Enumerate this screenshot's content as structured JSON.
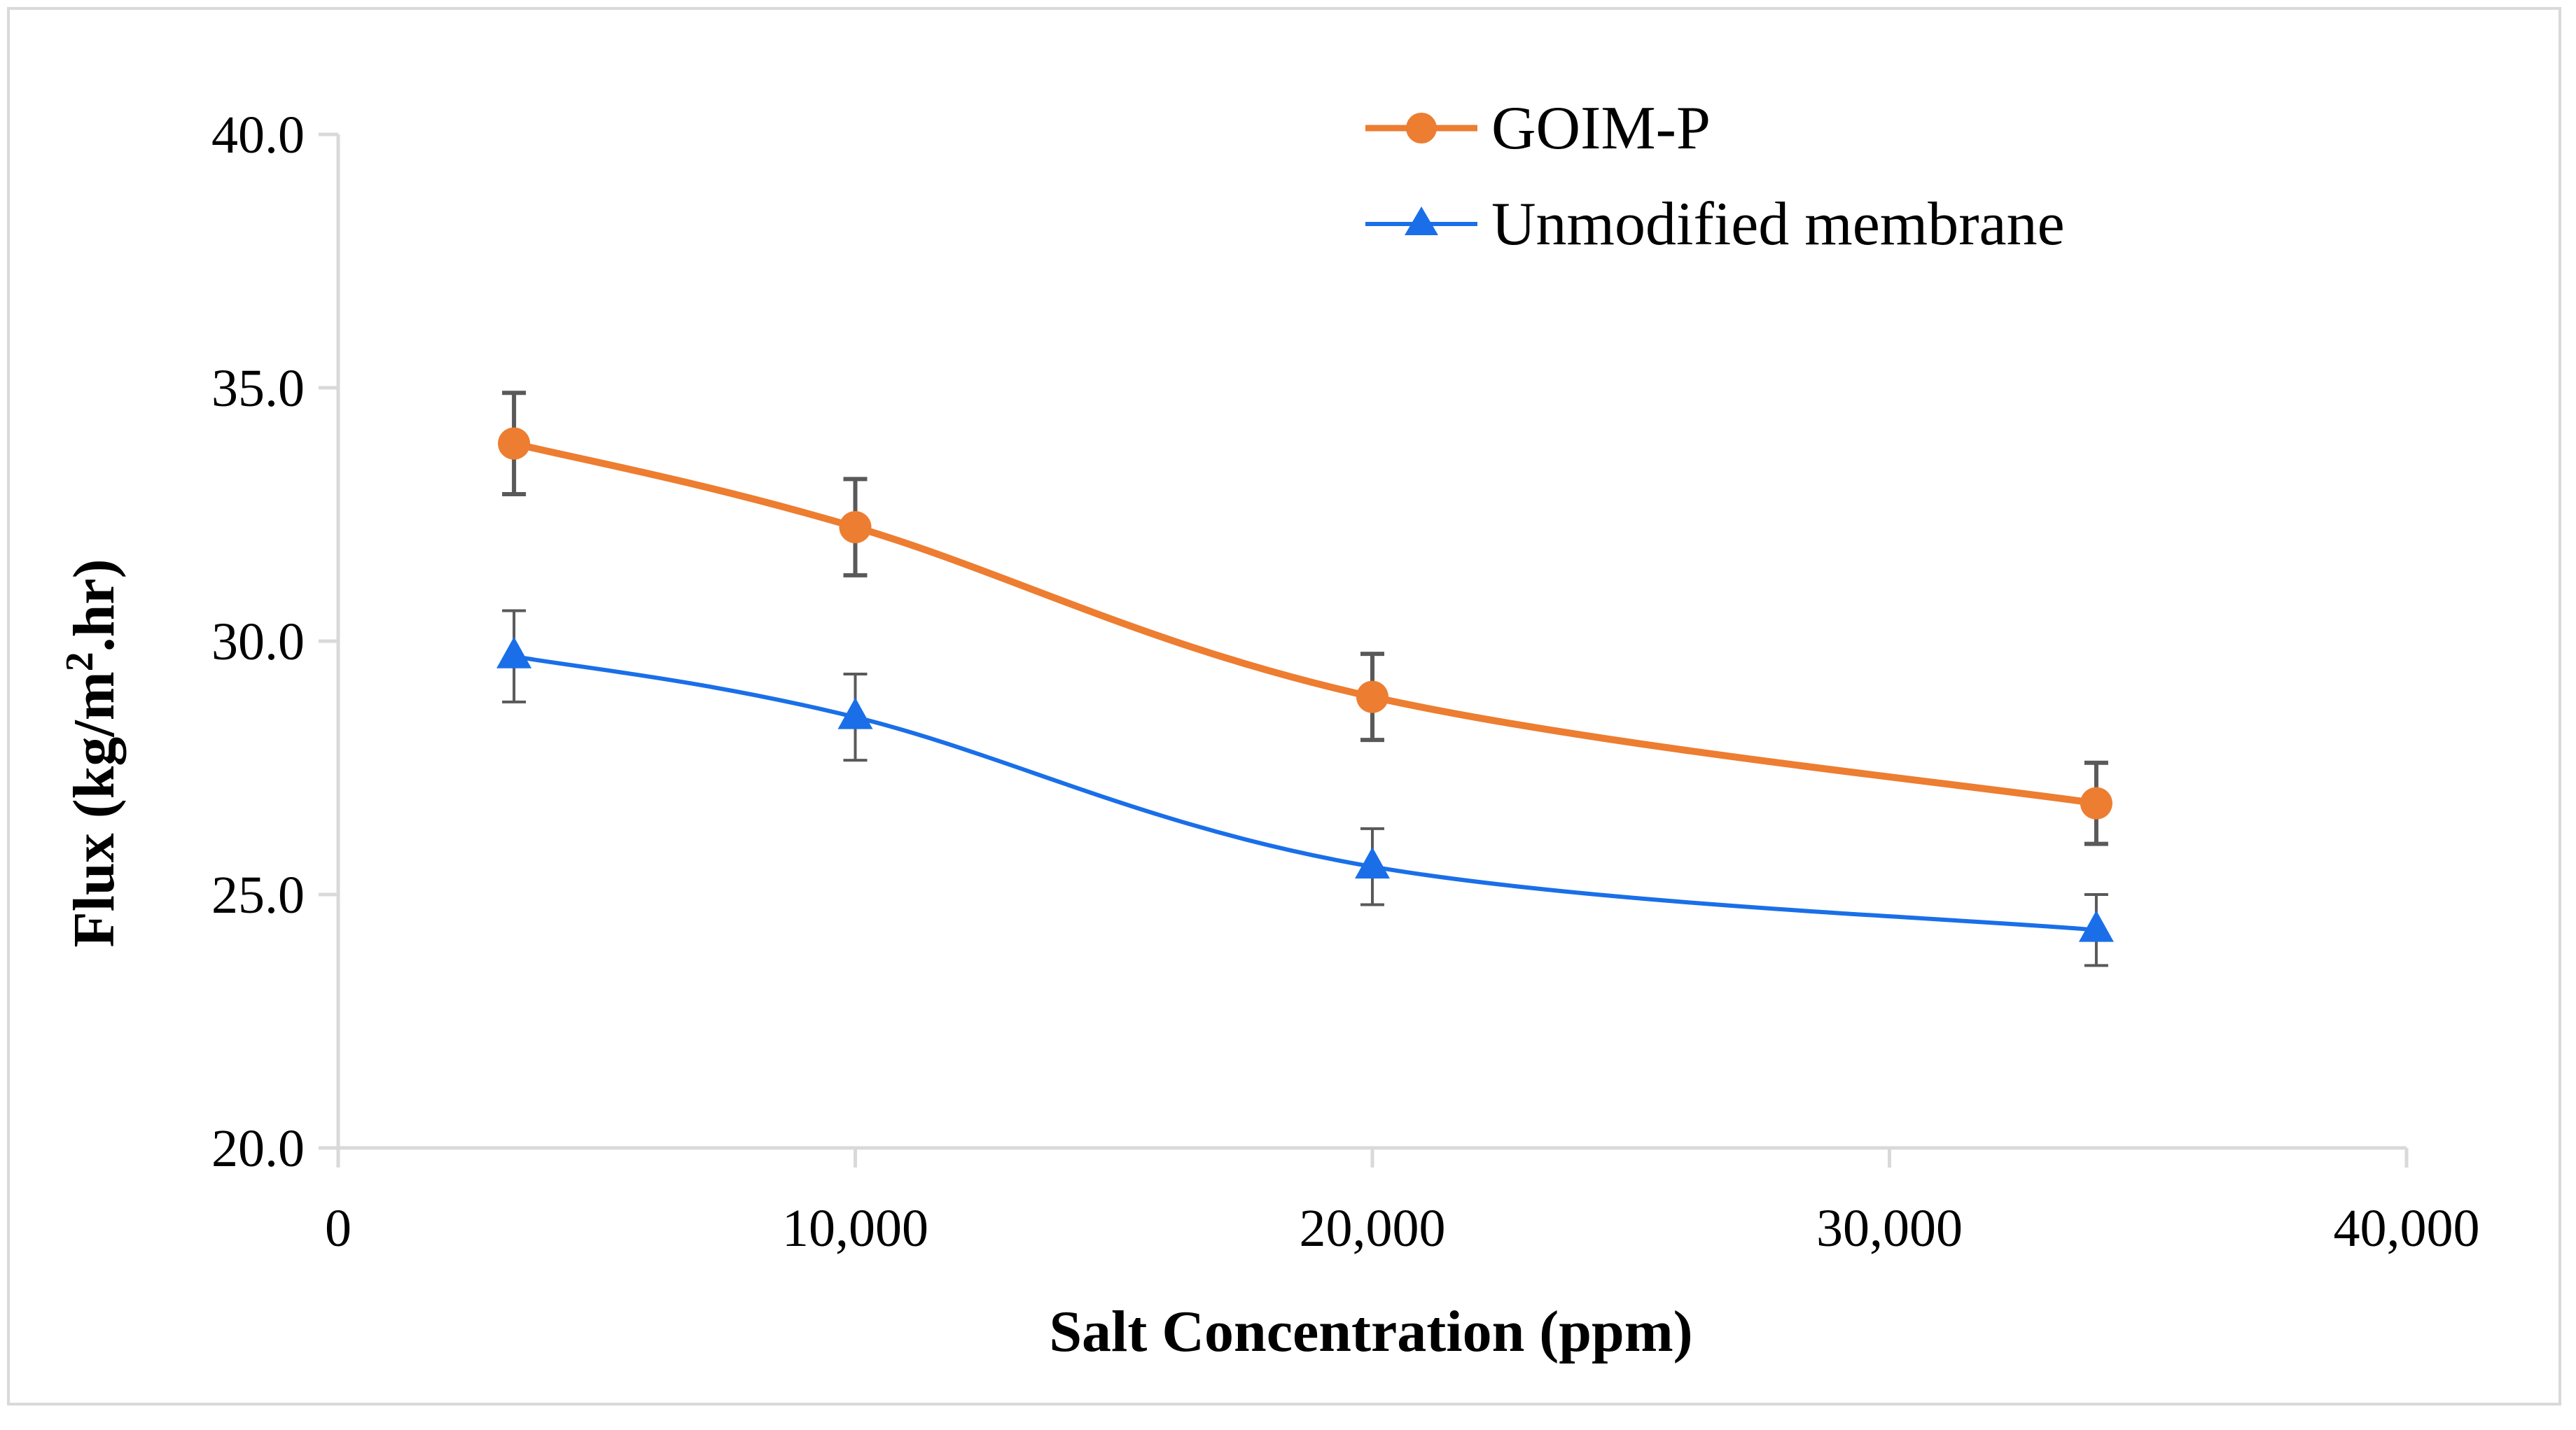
{
  "chart_data": {
    "type": "line",
    "title": "",
    "xlabel": "Salt Concentration (ppm)",
    "ylabel_main": "Flux (kg/m",
    "ylabel_sup": "2",
    "ylabel_tail": ".hr)",
    "xlim": [
      0,
      40000
    ],
    "ylim": [
      20,
      40
    ],
    "x_ticks": [
      0,
      10000,
      20000,
      30000,
      40000
    ],
    "x_tick_labels": [
      "0",
      "10,000",
      "20,000",
      "30,000",
      "40,000"
    ],
    "y_ticks": [
      20,
      25,
      30,
      35,
      40
    ],
    "y_tick_labels": [
      "20.0",
      "25.0",
      "30.0",
      "35.0",
      "40.0"
    ],
    "grid": false,
    "legend_position": "top-right",
    "series": [
      {
        "name": "GOIM-P",
        "marker": "circle",
        "color": "#ED7D31",
        "x": [
          3400,
          10000,
          20000,
          34000
        ],
        "y": [
          33.9,
          32.25,
          28.9,
          26.8
        ],
        "error": [
          1.0,
          0.95,
          0.85,
          0.8
        ]
      },
      {
        "name": "Unmodified membrane",
        "marker": "triangle",
        "color": "#1A6FE8",
        "x": [
          3400,
          10000,
          20000,
          34000
        ],
        "y": [
          29.7,
          28.5,
          25.55,
          24.3
        ],
        "error": [
          0.9,
          0.85,
          0.75,
          0.7
        ]
      }
    ],
    "errorbar_color": "#595959",
    "axis_color": "#d9d9d9"
  }
}
